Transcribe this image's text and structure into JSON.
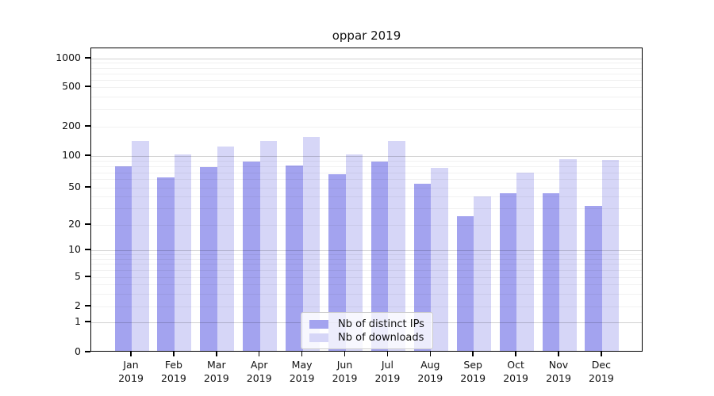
{
  "chart_data": {
    "type": "bar",
    "title": "oppar 2019",
    "categories": [
      "Jan 2019",
      "Feb 2019",
      "Mar 2019",
      "Apr 2019",
      "May 2019",
      "Jun 2019",
      "Jul 2019",
      "Aug 2019",
      "Sep 2019",
      "Oct 2019",
      "Nov 2019",
      "Dec 2019"
    ],
    "series": [
      {
        "name": "Nb of distinct IPs",
        "color": "#a3a3ef",
        "values": [
          77,
          60,
          76,
          85,
          78,
          65,
          85,
          53,
          24,
          42,
          42,
          31
        ]
      },
      {
        "name": "Nb of downloads",
        "color": "#d6d6f7",
        "values": [
          137,
          100,
          120,
          137,
          152,
          100,
          137,
          75,
          39,
          67,
          90,
          88
        ]
      }
    ],
    "xlabel": "",
    "ylabel": "",
    "yscale": "symlog-like custom axis",
    "yticks": [
      0,
      1,
      2,
      5,
      10,
      20,
      50,
      100,
      200,
      500,
      1000
    ],
    "ylim": [
      0,
      1300
    ],
    "grid": true,
    "legend_position": "inside lower center"
  }
}
